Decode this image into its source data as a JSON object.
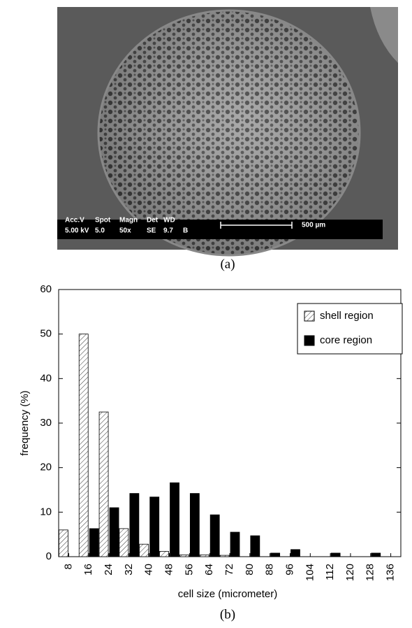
{
  "panel_a": {
    "info_bar": [
      [
        "Acc.V",
        "Spot",
        "Magn",
        "Det",
        "WD"
      ],
      [
        "5.00 kV",
        "5.0",
        "50x",
        "SE",
        "9.7",
        "B"
      ]
    ],
    "scale_label": "500 µm",
    "caption": "(a)"
  },
  "chart_data": {
    "type": "bar",
    "caption": "(b)",
    "x_label": "cell size (micrometer)",
    "y_label": "frequency (%)",
    "categories": [
      "8",
      "16",
      "24",
      "32",
      "40",
      "48",
      "56",
      "64",
      "72",
      "80",
      "88",
      "96",
      "104",
      "112",
      "120",
      "128",
      "136"
    ],
    "series": [
      {
        "name": "shell region",
        "color": "hatch",
        "values": [
          6,
          50,
          32.5,
          6.3,
          2.8,
          1.2,
          0.4,
          0.4,
          0.3,
          0,
          0,
          0,
          0,
          0,
          0,
          0,
          0
        ]
      },
      {
        "name": "core region",
        "color": "#000000",
        "values": [
          0,
          6.3,
          11,
          14.2,
          13.4,
          16.6,
          14.2,
          9.4,
          5.5,
          4.7,
          0.8,
          1.6,
          0,
          0.8,
          0,
          0.8,
          0
        ]
      }
    ],
    "ylim": [
      0,
      60
    ],
    "yticks": [
      0,
      10,
      20,
      30,
      40,
      50,
      60
    ],
    "grid": false,
    "legend": "upper right"
  }
}
